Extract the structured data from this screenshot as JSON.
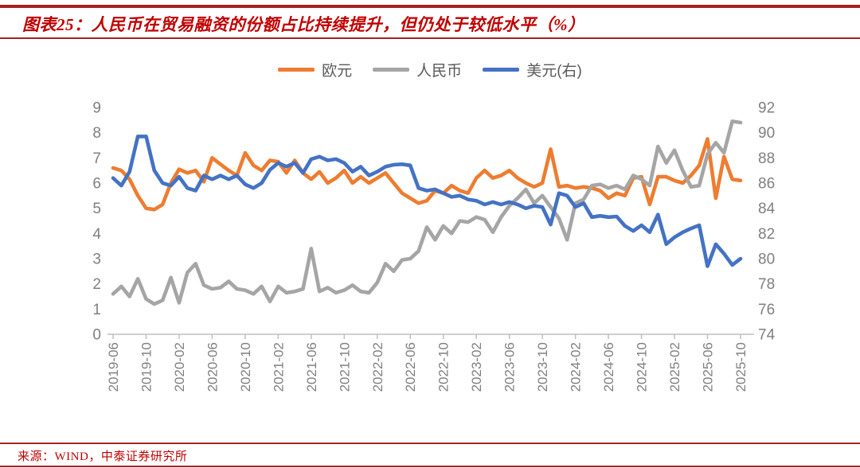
{
  "title": {
    "text": "图表25：人民币在贸易融资的份额占比持续提升，但仍处于较低水平（%）"
  },
  "source": {
    "text": "来源：WIND，中泰证券研究所"
  },
  "colors": {
    "euro": "#ED7D31",
    "rmb": "#A5A5A5",
    "usd": "#4472C4",
    "title_red": "#C00000",
    "rule_red": "#A62121",
    "axis_text": "#7F7F7F",
    "axis_line": "#BFBFBF",
    "legend_text": "#595959"
  },
  "chart_data": {
    "type": "line",
    "title": "人民币在贸易融资的份额占比持续提升，但仍处于较低水平（%）",
    "grid": false,
    "legend_position": "top",
    "x": [
      "2019-06",
      "2019-07",
      "2019-08",
      "2019-09",
      "2019-10",
      "2019-11",
      "2019-12",
      "2020-01",
      "2020-02",
      "2020-03",
      "2020-04",
      "2020-05",
      "2020-06",
      "2020-07",
      "2020-08",
      "2020-09",
      "2020-10",
      "2020-11",
      "2020-12",
      "2021-01",
      "2021-02",
      "2021-03",
      "2021-04",
      "2021-05",
      "2021-06",
      "2021-07",
      "2021-08",
      "2021-09",
      "2021-10",
      "2021-11",
      "2021-12",
      "2022-01",
      "2022-02",
      "2022-03",
      "2022-04",
      "2022-05",
      "2022-06",
      "2022-07",
      "2022-08",
      "2022-09",
      "2022-10",
      "2022-11",
      "2022-12",
      "2023-01",
      "2023-02",
      "2023-03",
      "2023-04",
      "2023-05",
      "2023-06",
      "2023-07",
      "2023-08",
      "2023-09",
      "2023-10",
      "2023-11",
      "2023-12",
      "2024-01",
      "2024-02",
      "2024-03",
      "2024-04",
      "2024-05",
      "2024-06",
      "2024-07",
      "2024-08",
      "2024-09",
      "2024-10",
      "2024-11",
      "2024-12",
      "2025-01",
      "2025-02",
      "2025-03",
      "2025-04",
      "2025-05",
      "2025-06",
      "2025-07",
      "2025-08",
      "2025-09",
      "2025-10"
    ],
    "x_tick_labels": [
      "2019-06",
      "2019-10",
      "2020-02",
      "2020-06",
      "2020-10",
      "2021-02",
      "2021-06",
      "2021-10",
      "2022-02",
      "2022-06",
      "2022-10",
      "2023-02",
      "2023-06",
      "2023-10",
      "2024-02",
      "2024-06",
      "2024-10",
      "2025-02",
      "2025-06",
      "2025-10"
    ],
    "x_tick_every": 4,
    "left_axis": {
      "min": 0,
      "max": 9,
      "step": 1,
      "ticks": [
        0,
        1,
        2,
        3,
        4,
        5,
        6,
        7,
        8,
        9
      ]
    },
    "right_axis": {
      "min": 74,
      "max": 92,
      "step": 2,
      "ticks": [
        74,
        76,
        78,
        80,
        82,
        84,
        86,
        88,
        90,
        92
      ]
    },
    "series": [
      {
        "name": "欧元",
        "axis": "left",
        "color_key": "euro",
        "values": [
          6.6,
          6.5,
          6.15,
          5.5,
          5.0,
          4.95,
          5.15,
          6.0,
          6.55,
          6.4,
          6.5,
          6.05,
          7.0,
          6.75,
          6.5,
          6.3,
          7.2,
          6.7,
          6.5,
          6.9,
          6.85,
          6.4,
          6.9,
          6.4,
          6.15,
          6.45,
          6.0,
          6.2,
          6.5,
          6.0,
          6.25,
          6.0,
          6.2,
          6.4,
          6.0,
          5.6,
          5.4,
          5.2,
          5.3,
          5.7,
          5.6,
          5.9,
          5.7,
          5.6,
          6.2,
          6.5,
          6.2,
          6.3,
          6.5,
          6.2,
          6.0,
          5.85,
          6.0,
          7.35,
          5.85,
          5.9,
          5.8,
          5.85,
          5.8,
          5.7,
          5.4,
          5.6,
          5.5,
          6.2,
          6.25,
          5.15,
          6.25,
          6.25,
          6.1,
          6.0,
          6.3,
          6.7,
          7.75,
          5.4,
          7.05,
          6.15,
          6.1
        ]
      },
      {
        "name": "人民币",
        "axis": "left",
        "color_key": "rmb",
        "values": [
          1.6,
          1.9,
          1.5,
          2.2,
          1.4,
          1.2,
          1.35,
          2.25,
          1.25,
          2.45,
          2.8,
          1.95,
          1.8,
          1.85,
          2.1,
          1.8,
          1.75,
          1.6,
          1.9,
          1.3,
          1.9,
          1.65,
          1.7,
          1.8,
          3.4,
          1.7,
          1.85,
          1.65,
          1.75,
          1.95,
          1.7,
          1.65,
          2.05,
          2.8,
          2.5,
          2.95,
          3.0,
          3.3,
          4.25,
          3.75,
          4.3,
          4.0,
          4.5,
          4.45,
          4.65,
          4.55,
          4.05,
          4.65,
          5.1,
          5.4,
          5.75,
          5.2,
          5.5,
          5.05,
          4.6,
          3.75,
          5.2,
          5.35,
          5.9,
          5.95,
          5.8,
          5.9,
          5.75,
          6.3,
          6.15,
          5.9,
          7.45,
          6.8,
          7.3,
          6.5,
          5.85,
          5.9,
          7.15,
          7.6,
          7.2,
          8.45,
          8.4
        ]
      },
      {
        "name": "美元(右)",
        "axis": "right",
        "color_key": "usd",
        "values": [
          86.4,
          85.8,
          86.9,
          89.7,
          89.7,
          87.0,
          86.0,
          85.8,
          86.5,
          85.6,
          85.4,
          86.6,
          86.3,
          86.6,
          86.3,
          86.6,
          85.9,
          85.6,
          86.0,
          87.05,
          87.6,
          87.3,
          87.6,
          86.8,
          87.9,
          88.1,
          87.8,
          87.9,
          87.6,
          86.9,
          87.3,
          86.6,
          86.9,
          87.3,
          87.45,
          87.5,
          87.4,
          85.6,
          85.4,
          85.5,
          85.2,
          84.9,
          85.0,
          84.7,
          84.6,
          84.3,
          84.5,
          84.3,
          84.5,
          84.3,
          84.0,
          84.2,
          84.1,
          82.7,
          85.2,
          85.0,
          84.1,
          84.4,
          83.3,
          83.4,
          83.3,
          83.35,
          82.6,
          82.2,
          82.65,
          82.1,
          83.5,
          81.15,
          81.7,
          82.1,
          82.4,
          82.65,
          79.4,
          81.15,
          80.4,
          79.5,
          80.0
        ]
      }
    ]
  }
}
